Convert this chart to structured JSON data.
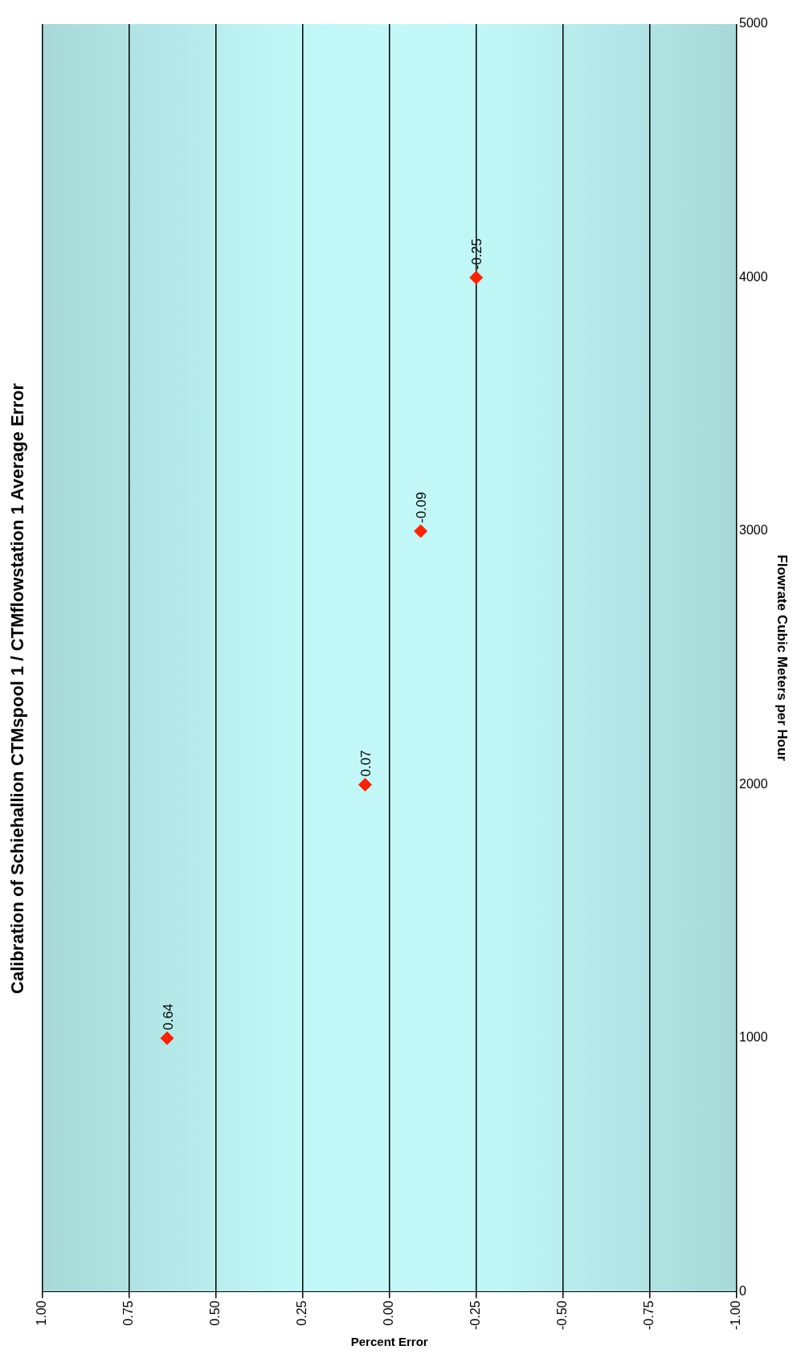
{
  "chart_data": {
    "type": "scatter",
    "title": "Calibration of Schiehallion CTMspool 1 / CTMflowstation 1 Average Error",
    "xlabel": "Percent Error",
    "ylabel": "Flowrate Cubic Meters per Hour",
    "x": [
      0.64,
      0.07,
      -0.09,
      -0.25
    ],
    "series": [
      {
        "color": "#ff2200",
        "values": [
          1000,
          2000,
          3000,
          4000
        ]
      }
    ],
    "annotations": [
      {
        "text": "0.64",
        "x": 0.64,
        "y": 1000
      },
      {
        "text": "0.07",
        "x": 0.07,
        "y": 2000
      },
      {
        "text": "-0.09",
        "x": -0.09,
        "y": 3000
      },
      {
        "text": "-0.25",
        "x": -0.25,
        "y": 4000
      }
    ],
    "xlim": [
      1,
      -1
    ],
    "xticks": [
      {
        "value": 1,
        "label": "1.00"
      },
      0.75,
      {
        "value": 0.5,
        "label": "0.50"
      },
      0.25,
      {
        "value": 0,
        "label": "0.00"
      },
      -0.25,
      {
        "value": -0.5,
        "label": "-0.50"
      },
      -0.75,
      {
        "value": -1,
        "label": "-1.00"
      }
    ],
    "ylim": [
      0,
      5000
    ],
    "yticks": [
      0,
      1000,
      2000,
      3000,
      4000,
      5000
    ],
    "grid": "x",
    "legend": false,
    "marker": "diamond"
  }
}
